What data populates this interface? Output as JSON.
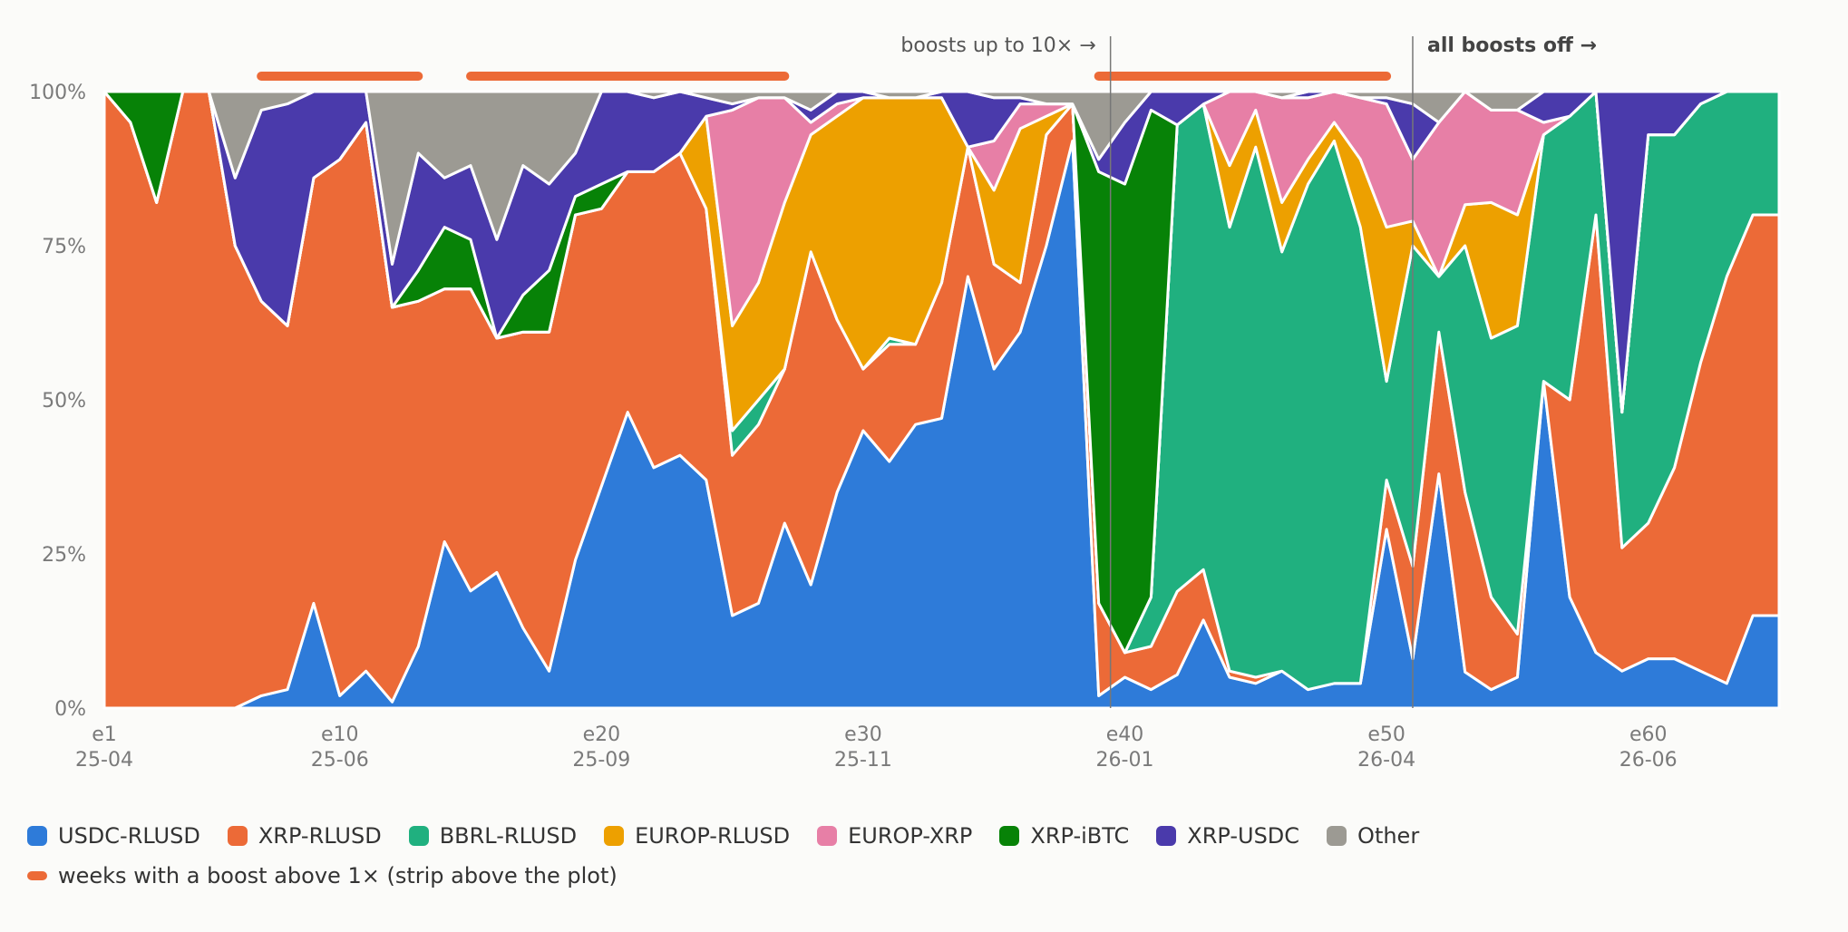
{
  "chart_data": {
    "type": "area",
    "stacked": true,
    "normalized": true,
    "x": [
      "e1",
      "e2",
      "e3",
      "e4",
      "e5",
      "e6",
      "e7",
      "e8",
      "e9",
      "e10",
      "e11",
      "e12",
      "e13",
      "e14",
      "e15",
      "e16",
      "e17",
      "e18",
      "e19",
      "e20",
      "e21",
      "e22",
      "e23",
      "e24",
      "e25",
      "e26",
      "e27",
      "e28",
      "e29",
      "e30",
      "e31",
      "e32",
      "e33",
      "e34",
      "e35",
      "e36",
      "e37",
      "e38",
      "e39",
      "e40",
      "e41",
      "e42",
      "e43",
      "e44",
      "e45",
      "e46",
      "e47",
      "e48",
      "e49",
      "e50",
      "e51",
      "e52",
      "e53",
      "e54",
      "e55",
      "e56",
      "e57",
      "e58",
      "e59",
      "e60",
      "e61",
      "e62",
      "e63",
      "e64",
      "e65"
    ],
    "x_tick_labels": [
      {
        "x": "e1",
        "line1": "e1",
        "line2": "25-04"
      },
      {
        "x": "e10",
        "line1": "e10",
        "line2": "25-06"
      },
      {
        "x": "e20",
        "line1": "e20",
        "line2": "25-09"
      },
      {
        "x": "e30",
        "line1": "e30",
        "line2": "25-11"
      },
      {
        "x": "e40",
        "line1": "e40",
        "line2": "26-01"
      },
      {
        "x": "e50",
        "line1": "e50",
        "line2": "26-04"
      },
      {
        "x": "e60",
        "line1": "e60",
        "line2": "26-06"
      }
    ],
    "y_ticks": [
      "0%",
      "25%",
      "50%",
      "75%",
      "100%"
    ],
    "ylim": [
      0,
      100
    ],
    "series": [
      {
        "name": "USDC-RLUSD",
        "color": "#2e7bd9",
        "values": [
          0,
          0,
          0,
          0,
          0,
          0,
          2,
          3,
          17,
          2,
          6,
          1,
          10,
          27,
          19,
          22,
          13,
          6,
          24,
          36,
          48,
          39,
          41,
          37,
          15,
          17,
          30,
          20,
          35,
          45,
          40,
          46,
          47,
          70,
          55,
          61,
          75,
          92,
          2,
          5,
          3,
          2,
          7,
          5,
          4,
          6,
          3,
          4,
          4,
          29,
          8,
          38,
          7,
          3,
          5,
          53,
          18,
          9,
          6,
          8,
          8,
          6,
          4,
          15,
          15
        ]
      },
      {
        "name": "XRP-RLUSD",
        "color": "#ec6a37",
        "values": [
          100,
          95,
          82,
          100,
          100,
          75,
          64,
          59,
          69,
          87,
          89,
          64,
          56,
          41,
          49,
          38,
          48,
          55,
          56,
          45,
          39,
          48,
          49,
          44,
          26,
          29,
          25,
          54,
          28,
          10,
          19,
          13,
          22,
          21,
          17,
          8,
          18,
          6,
          15,
          4,
          7,
          5,
          4,
          1,
          1,
          0,
          0,
          0,
          0,
          8,
          15,
          23,
          35,
          15,
          7,
          0,
          32,
          71,
          20,
          22,
          31,
          50,
          66,
          65,
          65
        ]
      },
      {
        "name": "BBRL-RLUSD",
        "color": "#20b07f",
        "values": [
          0,
          0,
          0,
          0,
          0,
          0,
          0,
          0,
          0,
          0,
          0,
          0,
          0,
          0,
          0,
          0,
          0,
          0,
          0,
          0,
          0,
          0,
          0,
          0,
          4,
          4,
          0,
          0,
          0,
          0,
          1,
          0,
          0,
          0,
          0,
          0,
          0,
          0,
          0,
          0,
          8,
          28,
          37,
          72,
          86,
          68,
          82,
          88,
          74,
          16,
          52,
          9,
          48,
          42,
          50,
          40,
          46,
          20,
          22,
          63,
          54,
          42,
          30,
          20,
          20
        ]
      },
      {
        "name": "EUROP-RLUSD",
        "color": "#eda000",
        "values": [
          0,
          0,
          0,
          0,
          0,
          0,
          0,
          0,
          0,
          0,
          0,
          0,
          0,
          0,
          0,
          0,
          0,
          0,
          0,
          0,
          0,
          0,
          0,
          15,
          17,
          19,
          27,
          19,
          33,
          44,
          39,
          40,
          30,
          0,
          12,
          25,
          3,
          0,
          0,
          0,
          0,
          0,
          0,
          10,
          6,
          8,
          4,
          3,
          11,
          25,
          4,
          0,
          8,
          22,
          18,
          0,
          0,
          0,
          0,
          0,
          0,
          0,
          0,
          0,
          0
        ]
      },
      {
        "name": "EUROP-XRP",
        "color": "#e77fa6",
        "values": [
          0,
          0,
          0,
          0,
          0,
          0,
          0,
          0,
          0,
          0,
          0,
          0,
          0,
          0,
          0,
          0,
          0,
          0,
          0,
          0,
          0,
          0,
          0,
          0,
          35,
          30,
          17,
          2,
          2,
          0,
          0,
          0,
          0,
          0,
          8,
          4,
          2,
          0,
          0,
          0,
          0,
          0,
          0,
          12,
          3,
          17,
          10,
          5,
          10,
          20,
          10,
          25,
          22,
          15,
          17,
          2,
          0,
          0,
          0,
          0,
          0,
          0,
          0,
          0,
          0
        ]
      },
      {
        "name": "XRP-iBTC",
        "color": "#078207",
        "values": [
          0,
          5,
          18,
          0,
          0,
          0,
          0,
          0,
          0,
          0,
          0,
          0,
          5,
          10,
          8,
          0,
          6,
          10,
          3,
          4,
          0,
          0,
          0,
          0,
          0,
          0,
          0,
          0,
          0,
          0,
          0,
          0,
          0,
          0,
          0,
          0,
          0,
          0,
          70,
          76,
          79,
          0,
          0,
          0,
          0,
          0,
          0,
          0,
          0,
          0,
          0,
          0,
          0,
          0,
          0,
          0,
          0,
          0,
          0,
          0,
          0,
          0,
          0,
          0,
          0
        ]
      },
      {
        "name": "XRP-USDC",
        "color": "#4a3aab",
        "values": [
          0,
          0,
          0,
          0,
          0,
          11,
          31,
          36,
          14,
          11,
          5,
          7,
          19,
          8,
          12,
          16,
          21,
          14,
          7,
          15,
          13,
          12,
          10,
          3,
          1,
          0,
          0,
          2,
          2,
          1,
          0,
          0,
          1,
          9,
          7,
          1,
          0,
          0,
          2,
          10,
          3,
          2,
          1,
          0,
          0,
          0,
          1,
          0,
          0,
          1,
          9,
          0,
          0,
          0,
          0,
          5,
          4,
          0,
          52,
          7,
          7,
          2,
          0,
          0,
          0
        ]
      },
      {
        "name": "Other",
        "color": "#9c9a93",
        "values": [
          0,
          0,
          0,
          0,
          0,
          14,
          3,
          2,
          0,
          0,
          0,
          28,
          10,
          14,
          12,
          24,
          12,
          15,
          10,
          0,
          0,
          1,
          0,
          1,
          2,
          1,
          1,
          3,
          0,
          0,
          1,
          1,
          0,
          0,
          1,
          1,
          2,
          2,
          11,
          5,
          0,
          0,
          0,
          0,
          0,
          1,
          0,
          0,
          1,
          1,
          2,
          5,
          0,
          3,
          3,
          0,
          0,
          0,
          0,
          0,
          0,
          0,
          0,
          0,
          0
        ]
      }
    ],
    "boost_strip": {
      "label": "weeks with a boost above 1× (strip above the plot)",
      "color": "#ec6a37",
      "segments": [
        [
          "e7",
          "e13"
        ],
        [
          "e15",
          "e27"
        ],
        [
          "e39",
          "e50"
        ]
      ]
    },
    "annotations": [
      {
        "x": "e39",
        "text": "boosts up to 10× →",
        "bold": false,
        "side": "left"
      },
      {
        "x": "e51",
        "text": "all boosts off →",
        "bold": true,
        "side": "right"
      }
    ],
    "legend_position": "bottom-left",
    "grid": false
  }
}
